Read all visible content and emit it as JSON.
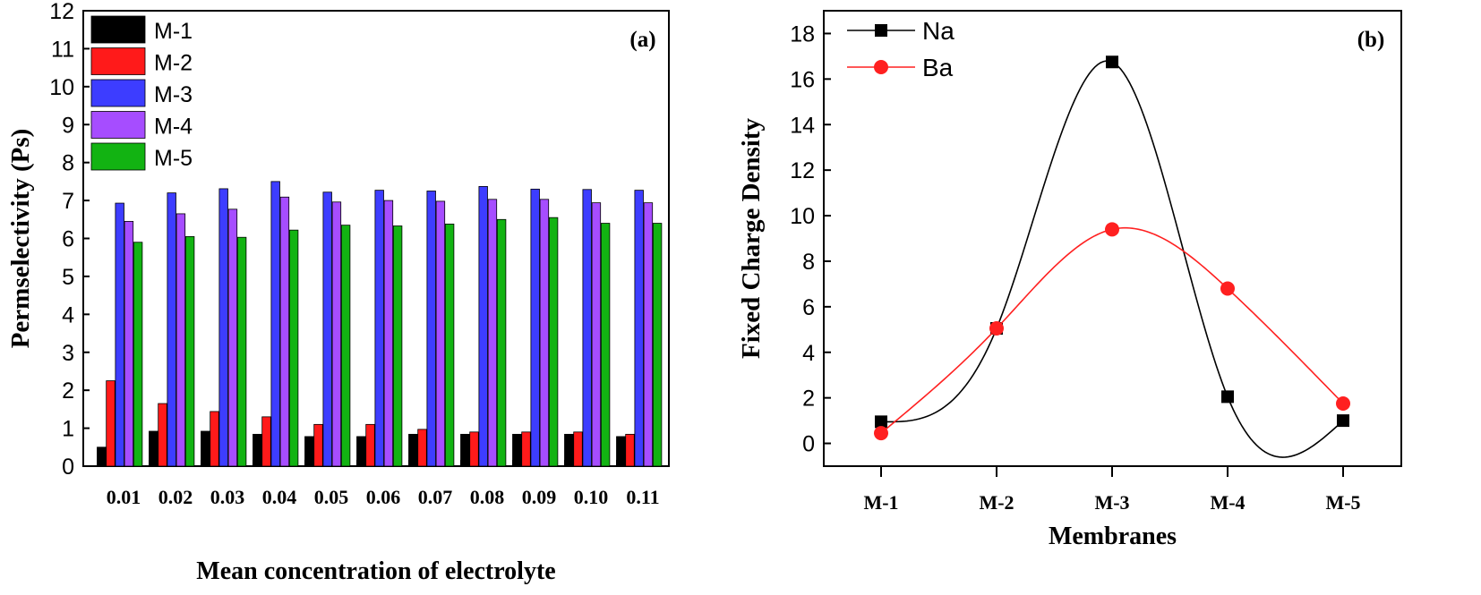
{
  "chart_data": [
    {
      "panel_label": "(a)",
      "type": "bar",
      "xlabel": "Mean concentration of electrolyte",
      "ylabel": "Permselectivity (Ps)",
      "ylim": [
        0,
        12
      ],
      "yticks": [
        0,
        1,
        2,
        3,
        4,
        5,
        6,
        7,
        8,
        9,
        10,
        11,
        12
      ],
      "legend_position": "top-left",
      "grid": false,
      "categories": [
        "0.01",
        "0.02",
        "0.03",
        "0.04",
        "0.05",
        "0.06",
        "0.07",
        "0.08",
        "0.09",
        "0.10",
        "0.11"
      ],
      "series": [
        {
          "name": "M-1",
          "color": "#000000",
          "values": [
            0.5,
            0.92,
            0.92,
            0.84,
            0.78,
            0.78,
            0.84,
            0.84,
            0.84,
            0.84,
            0.78
          ]
        },
        {
          "name": "M-2",
          "color": "#ff1a1a",
          "values": [
            2.25,
            1.65,
            1.44,
            1.3,
            1.1,
            1.1,
            0.97,
            0.9,
            0.9,
            0.9,
            0.84
          ]
        },
        {
          "name": "M-3",
          "color": "#3d3dff",
          "values": [
            6.93,
            7.2,
            7.31,
            7.5,
            7.22,
            7.27,
            7.25,
            7.37,
            7.3,
            7.29,
            7.27
          ]
        },
        {
          "name": "M-4",
          "color": "#a64dff",
          "values": [
            6.45,
            6.65,
            6.77,
            7.09,
            6.96,
            7.0,
            6.98,
            7.03,
            7.03,
            6.94,
            6.94
          ]
        },
        {
          "name": "M-5",
          "color": "#12b312",
          "values": [
            5.9,
            6.05,
            6.03,
            6.22,
            6.35,
            6.33,
            6.38,
            6.5,
            6.55,
            6.4,
            6.4
          ]
        }
      ]
    },
    {
      "panel_label": "(b)",
      "type": "line",
      "xlabel": "Membranes",
      "ylabel": "Fixed Charge Density",
      "ylim": [
        -1,
        19
      ],
      "yticks": [
        0,
        2,
        4,
        6,
        8,
        10,
        12,
        14,
        16,
        18
      ],
      "legend_position": "top-left",
      "grid": false,
      "categories": [
        "M-1",
        "M-2",
        "M-3",
        "M-4",
        "M-5"
      ],
      "series": [
        {
          "name": "Na",
          "color": "#000000",
          "marker": "square",
          "values": [
            0.95,
            5.05,
            16.75,
            2.05,
            1.0
          ]
        },
        {
          "name": "Ba",
          "color": "#ff2020",
          "marker": "circle",
          "values": [
            0.45,
            5.05,
            9.4,
            6.8,
            1.75
          ]
        }
      ]
    }
  ]
}
